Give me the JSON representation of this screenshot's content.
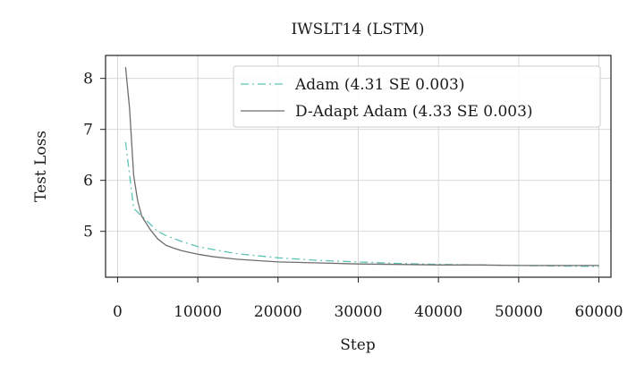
{
  "chart_data": {
    "type": "line",
    "title": "IWSLT14 (LSTM)",
    "xlabel": "Step",
    "ylabel": "Test Loss",
    "xlim": [
      -1500,
      61500
    ],
    "ylim": [
      4.1,
      8.45
    ],
    "xticks": [
      0,
      10000,
      20000,
      30000,
      40000,
      50000,
      60000
    ],
    "xtick_labels": [
      "0",
      "10000",
      "20000",
      "30000",
      "40000",
      "50000",
      "60000"
    ],
    "yticks": [
      5,
      6,
      7,
      8
    ],
    "ytick_labels": [
      "5",
      "6",
      "7",
      "8"
    ],
    "grid": true,
    "legend_position": "top-right",
    "series": [
      {
        "name": "Adam (4.31 SE 0.003)",
        "color": "#5fc3b9",
        "dash": "dashdot",
        "x": [
          1000,
          2000,
          3000,
          4000,
          5000,
          6000,
          8000,
          10000,
          12000,
          15000,
          20000,
          25000,
          30000,
          35000,
          40000,
          45000,
          50000,
          55000,
          60000
        ],
        "y": [
          6.75,
          5.45,
          5.3,
          5.15,
          5.0,
          4.92,
          4.8,
          4.7,
          4.64,
          4.56,
          4.48,
          4.43,
          4.4,
          4.37,
          4.35,
          4.34,
          4.33,
          4.32,
          4.31
        ]
      },
      {
        "name": "D-Adapt Adam (4.33 SE 0.003)",
        "color": "#6e6e6e",
        "dash": "solid",
        "x": [
          1000,
          1500,
          2000,
          2500,
          3000,
          4000,
          5000,
          6000,
          7000,
          8000,
          10000,
          12000,
          15000,
          20000,
          25000,
          30000,
          35000,
          40000,
          45000,
          50000,
          55000,
          60000
        ],
        "y": [
          8.22,
          7.4,
          6.1,
          5.6,
          5.3,
          5.05,
          4.85,
          4.73,
          4.67,
          4.62,
          4.55,
          4.5,
          4.45,
          4.4,
          4.38,
          4.36,
          4.35,
          4.34,
          4.34,
          4.33,
          4.33,
          4.33
        ]
      }
    ]
  }
}
